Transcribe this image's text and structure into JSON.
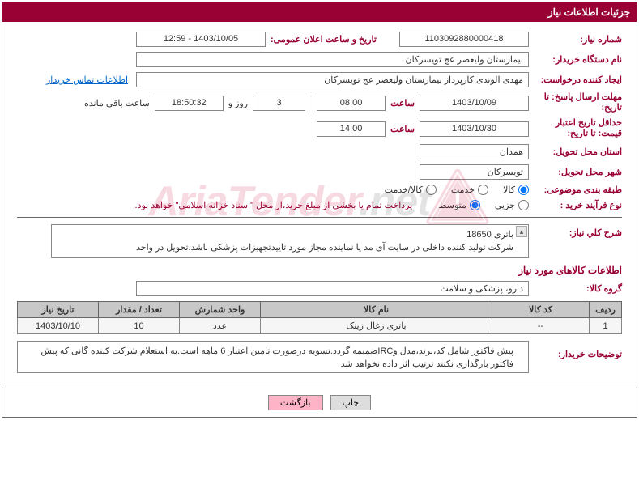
{
  "header": {
    "title": "جزئیات اطلاعات نیاز"
  },
  "fields": {
    "need_no_label": "شماره نیاز:",
    "need_no": "1103092880000418",
    "announce_label": "تاریخ و ساعت اعلان عمومی:",
    "announce": "1403/10/05 - 12:59",
    "buyer_org_label": "نام دستگاه خریدار:",
    "buyer_org": "بیمارستان ولیعصر  عج  تویسرکان",
    "requester_label": "ایجاد کننده درخواست:",
    "requester": "مهدی الوندی کارپرداز بیمارستان ولیعصر  عج  تویسرکان",
    "contact_link": "اطلاعات تماس خریدار",
    "deadline_resp_label": "مهلت ارسال پاسخ: تا تاریخ:",
    "deadline_resp_date": "1403/10/09",
    "hour_label": "ساعت",
    "deadline_resp_time": "08:00",
    "remain_days": "3",
    "day_and": "روز و",
    "remain_time": "18:50:32",
    "remain_suffix": "ساعت باقی مانده",
    "validity_label": "حداقل تاریخ اعتبار قیمت: تا تاریخ:",
    "validity_date": "1403/10/30",
    "validity_time": "14:00",
    "province_label": "استان محل تحویل:",
    "province": "همدان",
    "city_label": "شهر محل تحویل:",
    "city": "تویسرکان",
    "category_label": "طبقه بندی موضوعی:",
    "process_label": "نوع فرآیند خرید :",
    "payment_note": "پرداخت تمام یا بخشی از مبلغ خرید،از محل \"اسناد خزانه اسلامی\" خواهد بود."
  },
  "radios": {
    "category": [
      {
        "label": "کالا",
        "checked": true
      },
      {
        "label": "خدمت",
        "checked": false
      },
      {
        "label": "کالا/خدمت",
        "checked": false
      }
    ],
    "process": [
      {
        "label": "جزیی",
        "checked": false
      },
      {
        "label": "متوسط",
        "checked": true
      }
    ]
  },
  "description": {
    "label": "شرح کلي نیاز:",
    "text": "باتری 18650\nشرکت تولید کننده داخلی در سایت آی مد یا نماینده مجاز مورد تاییدتجهیزات پزشکی باشد.تحویل در واحد"
  },
  "items_section": {
    "title": "اطلاعات کالاهای مورد نیاز",
    "group_label": "گروه کالا:",
    "group_value": "دارو، پزشکی و سلامت"
  },
  "table": {
    "headers": [
      "ردیف",
      "کد کالا",
      "نام کالا",
      "واحد شمارش",
      "تعداد / مقدار",
      "تاریخ نیاز"
    ],
    "col_widths": [
      "40px",
      "120px",
      "auto",
      "100px",
      "100px",
      "100px"
    ],
    "rows": [
      [
        "1",
        "--",
        "باتری زغال زینک",
        "عدد",
        "10",
        "1403/10/10"
      ]
    ]
  },
  "buyer_note": {
    "label": "توضیحات خریدار:",
    "text": "پیش فاکتور شامل کد،برند،مدل وIRCضمیمه گردد.تسویه درصورت تامین اعتبار 6 ماهه است.به استعلام شرکت کننده گانی که پیش فاکتور بارگذاری نکنند ترتیب اثر داده نخواهد شد"
  },
  "buttons": {
    "print": "چاپ",
    "back": "بازگشت"
  },
  "colors": {
    "primary": "#990033",
    "border": "#666666",
    "header_th": "#c8c8c8",
    "row_bg": "#f6f6f6",
    "link": "#0066cc",
    "back_btn": "#ffb3c6"
  },
  "watermark": {
    "text_main": "AriaTender",
    "text_suffix": ".net",
    "icon_color": "#cc0033",
    "opacity": 0.14
  }
}
